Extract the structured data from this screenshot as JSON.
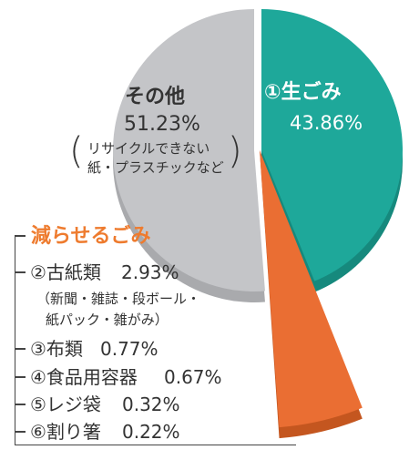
{
  "colors": {
    "other": "#c4c5c8",
    "other_shadow": "#a9aaad",
    "food": "#1ea89a",
    "food_shadow": "#16897d",
    "reducible": "#ea6e33",
    "reducible_shadow": "#c4561f",
    "heading": "#ee7b2e"
  },
  "chart_data": {
    "type": "pie",
    "slices": [
      {
        "key": "food",
        "label": "①生ごみ",
        "value": 43.86,
        "value_label": "43.86%"
      },
      {
        "key": "other",
        "label": "その他",
        "value": 51.23,
        "value_label": "51.23%",
        "note": [
          "リサイクルできない",
          "紙・プラスチックなど"
        ]
      },
      {
        "key": "reducible",
        "label": "減らせるごみ",
        "value": 4.91
      }
    ],
    "reducible_breakdown": {
      "title": "減らせるごみ",
      "items": [
        {
          "label": "②古紙類",
          "value": "2.93%",
          "note": [
            "（新聞・雑誌・段ボール・",
            "紙パック・雑がみ）"
          ]
        },
        {
          "label": "③布類",
          "value": "0.77%"
        },
        {
          "label": "④食品用容器",
          "value": "0.67%"
        },
        {
          "label": "⑤レジ袋",
          "value": "0.32%"
        },
        {
          "label": "⑥割り箸",
          "value": "0.22%"
        }
      ]
    }
  }
}
